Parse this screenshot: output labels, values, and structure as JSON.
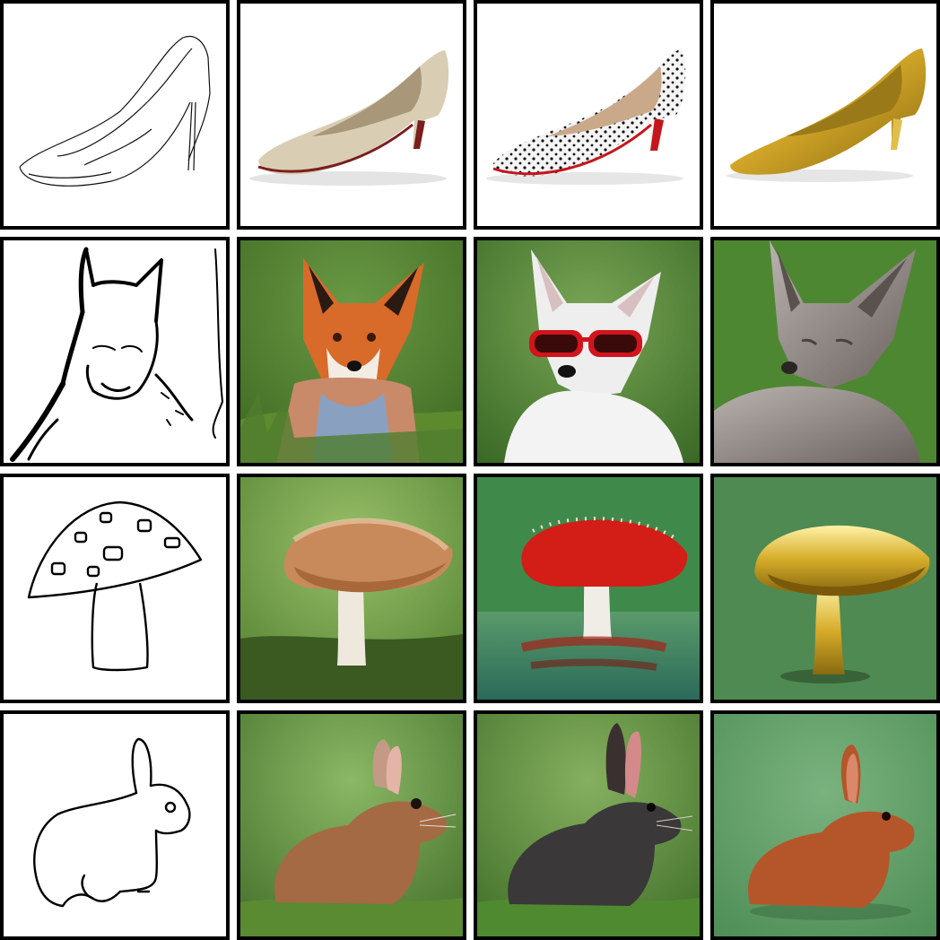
{
  "grid": {
    "rows": [
      {
        "subject": "shoe",
        "cells": [
          {
            "kind": "sketch",
            "icon": "shoe-sketch-icon"
          },
          {
            "kind": "photo",
            "icon": "beige-shoe-icon",
            "colors": {
              "main": "#d9cdb4",
              "accent": "#7a1e1e"
            }
          },
          {
            "kind": "photo",
            "icon": "polka-dot-shoe-icon",
            "colors": {
              "main": "#f4f4f4",
              "accent": "#c4161c"
            }
          },
          {
            "kind": "photo",
            "icon": "gold-shoe-icon",
            "colors": {
              "main": "#d4a829",
              "accent": "#8a6a10"
            }
          }
        ]
      },
      {
        "subject": "fox",
        "cells": [
          {
            "kind": "sketch",
            "icon": "fox-sketch-icon"
          },
          {
            "kind": "photo",
            "icon": "red-fox-icon",
            "colors": {
              "main": "#d86a2a",
              "bg": "#4f7d2f"
            }
          },
          {
            "kind": "photo",
            "icon": "white-fox-sunglasses-icon",
            "colors": {
              "main": "#eeeeee",
              "accent": "#d2141c",
              "bg": "#5a8a3a"
            }
          },
          {
            "kind": "photo",
            "icon": "fox-statue-icon",
            "colors": {
              "main": "#8a8480",
              "bg": "#3f7a2a"
            }
          }
        ]
      },
      {
        "subject": "mushroom",
        "cells": [
          {
            "kind": "sketch",
            "icon": "mushroom-sketch-icon"
          },
          {
            "kind": "photo",
            "icon": "brown-mushroom-icon",
            "colors": {
              "main": "#c88a5a",
              "bg": "#5b8b3a"
            }
          },
          {
            "kind": "photo",
            "icon": "red-mushroom-water-icon",
            "colors": {
              "main": "#d31d17",
              "bg": "#3f8a6a"
            }
          },
          {
            "kind": "photo",
            "icon": "gold-mushroom-icon",
            "colors": {
              "main": "#d7ad2a",
              "bg": "#4f8a52"
            }
          }
        ]
      },
      {
        "subject": "rabbit",
        "cells": [
          {
            "kind": "sketch",
            "icon": "rabbit-sketch-icon"
          },
          {
            "kind": "photo",
            "icon": "brown-rabbit-icon",
            "colors": {
              "main": "#a46a44",
              "bg": "#5a8c3e"
            }
          },
          {
            "kind": "photo",
            "icon": "black-rabbit-icon",
            "colors": {
              "main": "#3a3838",
              "bg": "#4f8a3a"
            }
          },
          {
            "kind": "photo",
            "icon": "felt-rabbit-icon",
            "colors": {
              "main": "#b5562a",
              "bg": "#5f9a62"
            }
          }
        ]
      }
    ]
  }
}
